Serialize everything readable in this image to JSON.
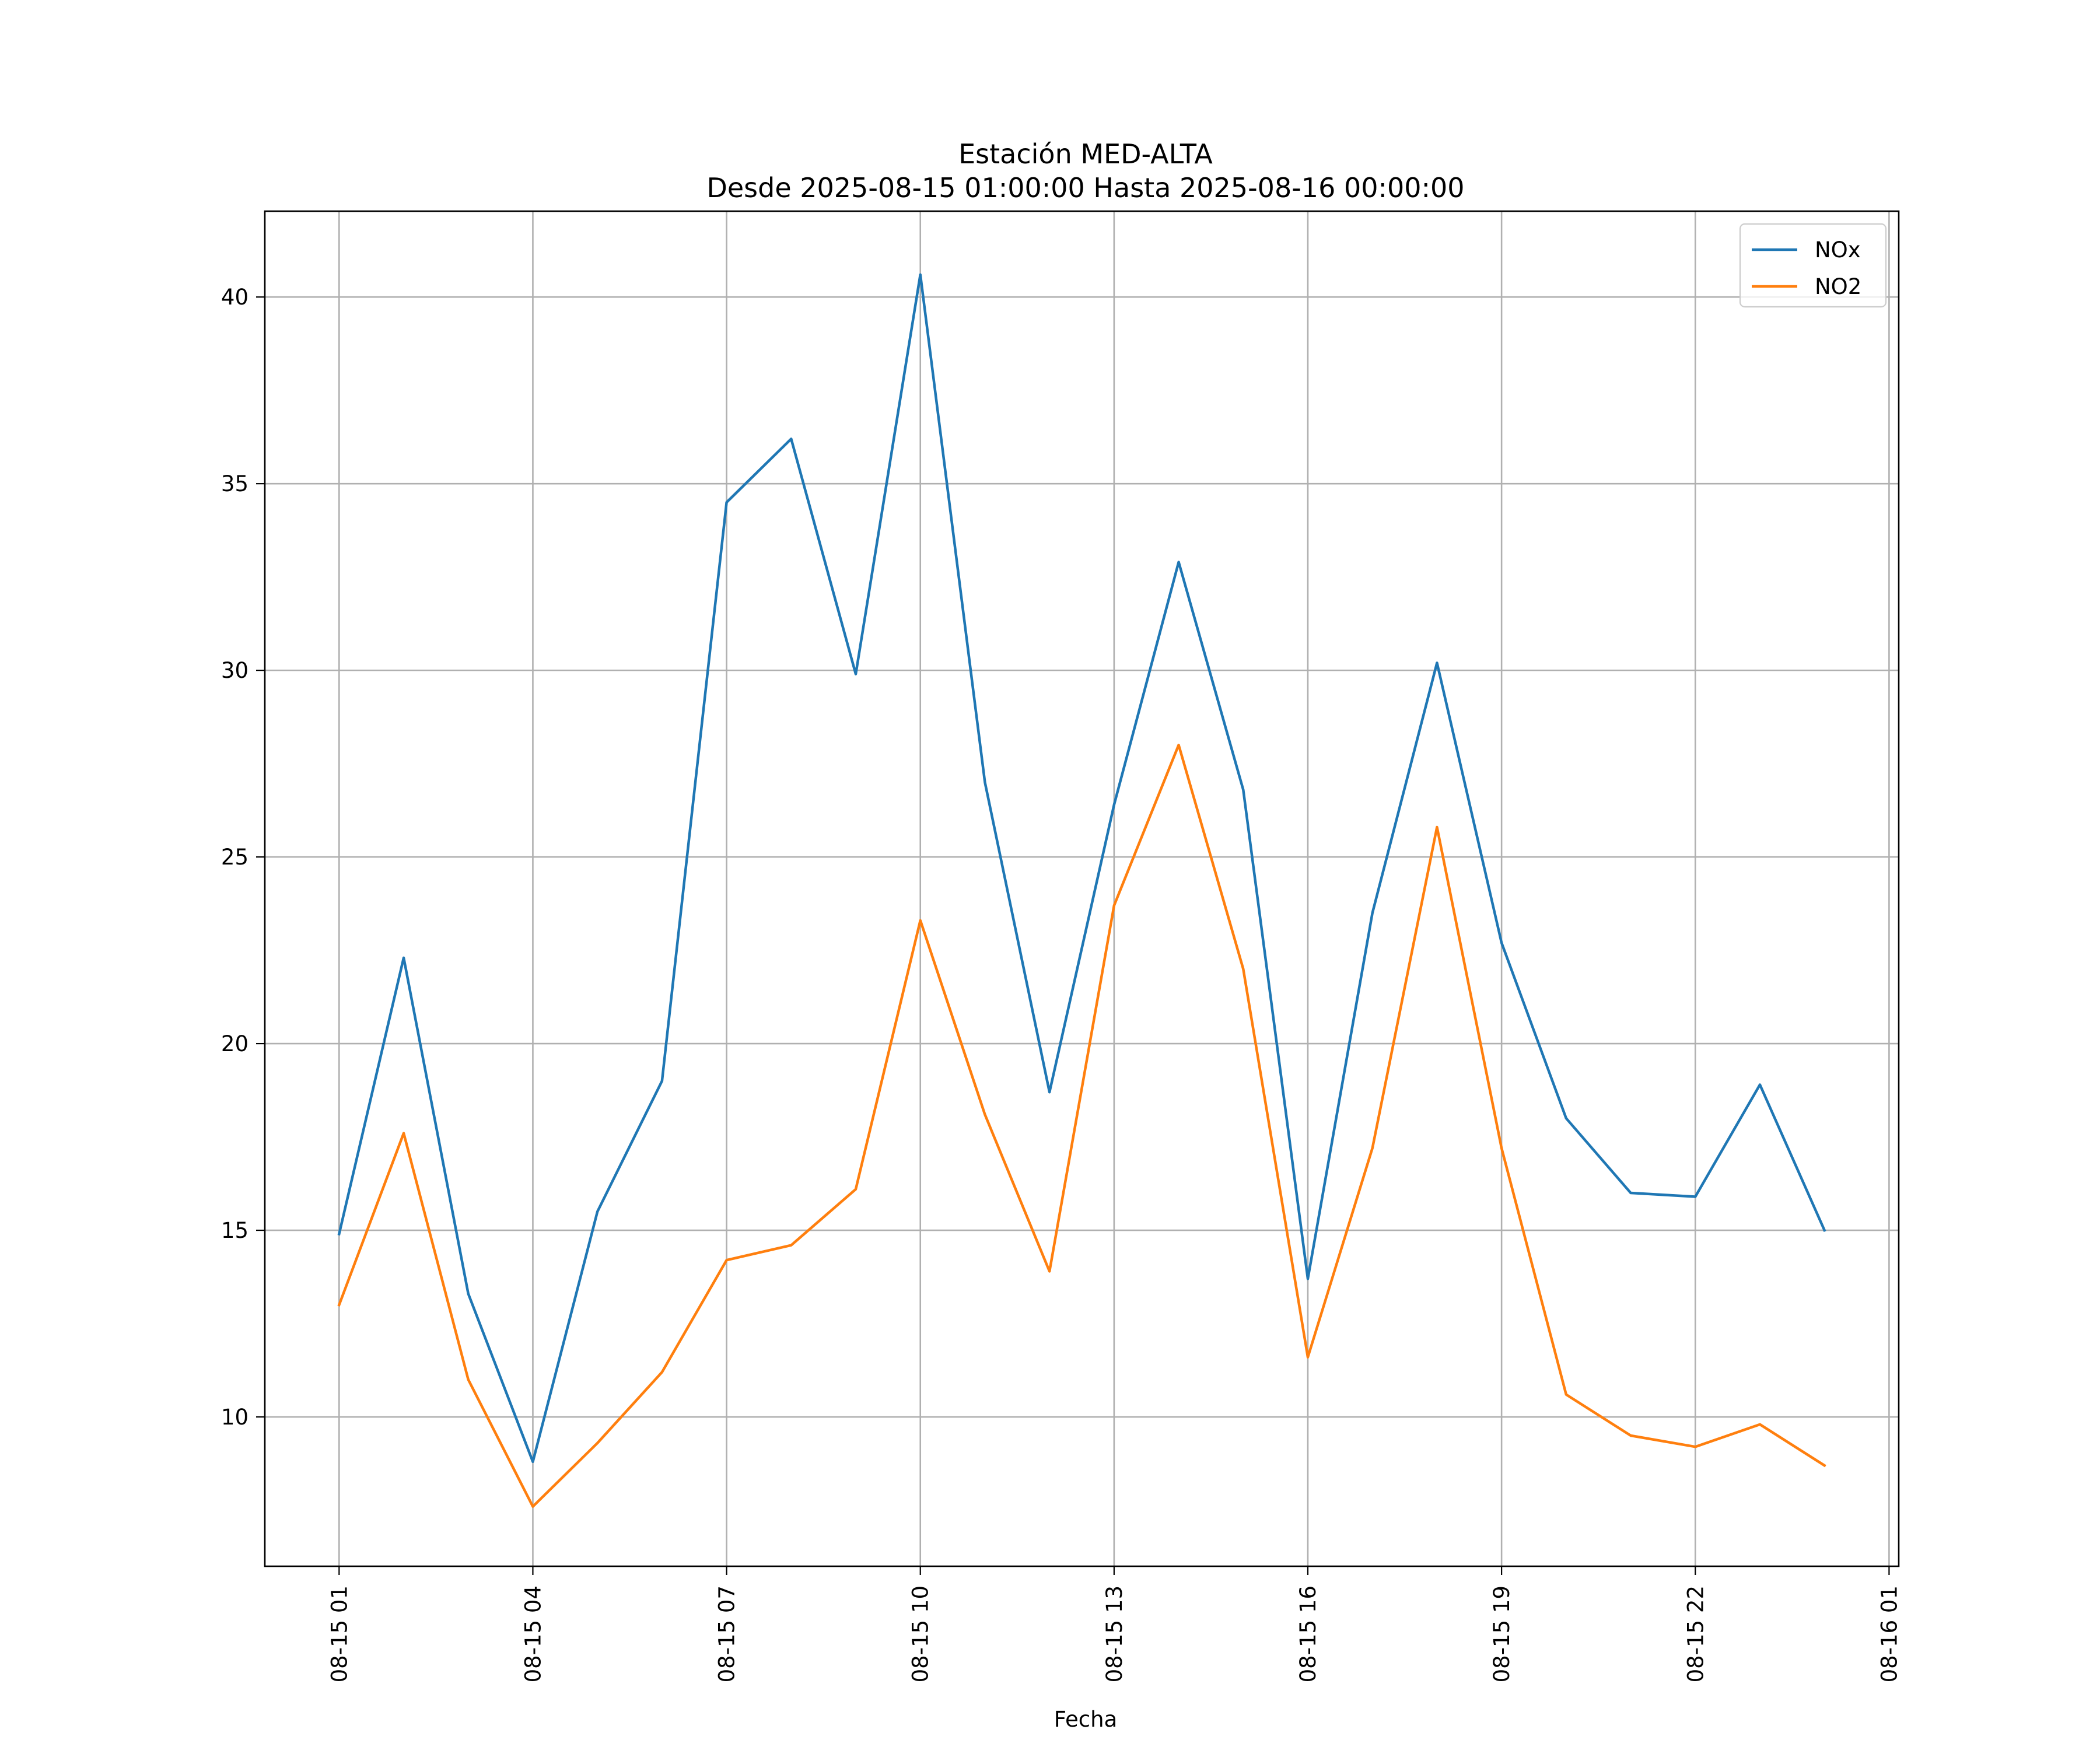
{
  "chart_data": {
    "type": "line",
    "title": "Estación MED-ALTA",
    "subtitle": "Desde 2025-08-15 01:00:00 Hasta 2025-08-16 00:00:00",
    "xlabel": "Fecha",
    "ylabel": "",
    "x": [
      "08-15 01",
      "08-15 02",
      "08-15 03",
      "08-15 04",
      "08-15 05",
      "08-15 06",
      "08-15 07",
      "08-15 08",
      "08-15 09",
      "08-15 10",
      "08-15 11",
      "08-15 12",
      "08-15 13",
      "08-15 14",
      "08-15 15",
      "08-15 16",
      "08-15 17",
      "08-15 18",
      "08-15 19",
      "08-15 20",
      "08-15 21",
      "08-15 22",
      "08-15 23",
      "08-16 00"
    ],
    "x_ticks": [
      "08-15 01",
      "08-15 04",
      "08-15 07",
      "08-15 10",
      "08-15 13",
      "08-15 16",
      "08-15 19",
      "08-15 22",
      "08-16 01"
    ],
    "x_tick_hours": [
      0,
      3,
      6,
      9,
      12,
      15,
      18,
      21,
      24
    ],
    "xlim_hours": [
      -1.15,
      24.15
    ],
    "y_ticks": [
      10,
      15,
      20,
      25,
      30,
      35,
      40
    ],
    "ylim": [
      6.0,
      42.3
    ],
    "grid": true,
    "legend_position": "top-right",
    "series": [
      {
        "name": "NOx",
        "color": "#1f77b4",
        "values": [
          14.9,
          22.3,
          13.3,
          8.8,
          15.5,
          19.0,
          34.5,
          36.2,
          29.9,
          40.6,
          27.0,
          18.7,
          26.4,
          32.9,
          26.8,
          13.7,
          23.5,
          30.2,
          22.7,
          18.0,
          16.0,
          15.9,
          18.9,
          15.0
        ]
      },
      {
        "name": "NO2",
        "color": "#ff7f0e",
        "values": [
          13.0,
          17.6,
          11.0,
          7.6,
          9.3,
          11.2,
          14.2,
          14.6,
          16.1,
          23.3,
          18.1,
          13.9,
          23.7,
          28.0,
          22.0,
          11.6,
          17.2,
          25.8,
          17.2,
          10.6,
          9.5,
          9.2,
          9.8,
          8.7
        ]
      }
    ]
  }
}
